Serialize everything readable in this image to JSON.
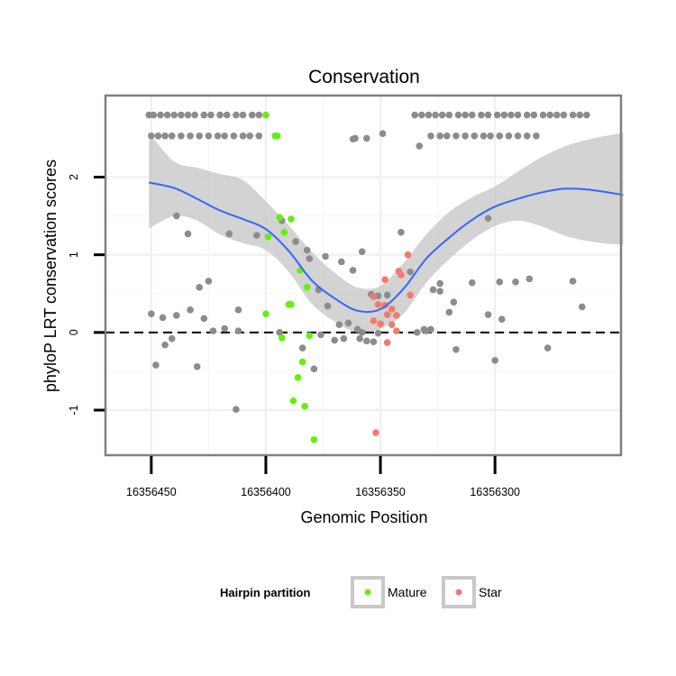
{
  "chart_data": {
    "type": "scatter",
    "title": "Conservation",
    "xlabel": "Genomic Position",
    "ylabel": "phyloP LRT conservation scores",
    "x_axis_reversed": true,
    "xlim": [
      16356470,
      16356245
    ],
    "ylim": [
      -1.58,
      3.05
    ],
    "x_ticks": [
      16356450,
      16356400,
      16356350,
      16356300
    ],
    "x_tick_labels": [
      "16356450",
      "16356400",
      "16356350",
      "16356300"
    ],
    "y_ticks": [
      -1,
      0,
      1,
      2
    ],
    "y_tick_labels": [
      "-1",
      "0",
      "1",
      "2"
    ],
    "reference_line": {
      "y": 0,
      "style": "dashed"
    },
    "grid": true,
    "legend": {
      "title": "Hairpin partition",
      "position": "bottom",
      "entries": [
        {
          "label": "Mature",
          "color": "#66ee11"
        },
        {
          "label": "Star",
          "color": "#f07b6e"
        }
      ]
    },
    "colors": {
      "other": "#8c8c8c",
      "mature": "#66ee11",
      "star": "#f07b6e",
      "smooth_line": "#3366ff",
      "ribbon": "#c8c8c8",
      "panel_border": "#7f7f7f"
    },
    "smooth": {
      "x": [
        16356451,
        16356440,
        16356430,
        16356420,
        16356410,
        16356400,
        16356390,
        16356380,
        16356370,
        16356360,
        16356350,
        16356340,
        16356330,
        16356320,
        16356310,
        16356300,
        16356290,
        16356280,
        16356270,
        16356260,
        16356250,
        16356244
      ],
      "y": [
        1.93,
        1.86,
        1.72,
        1.57,
        1.46,
        1.33,
        1.05,
        0.67,
        0.44,
        0.28,
        0.3,
        0.56,
        0.95,
        1.22,
        1.45,
        1.62,
        1.72,
        1.8,
        1.85,
        1.84,
        1.8,
        1.77
      ],
      "lower": [
        1.34,
        1.5,
        1.44,
        1.26,
        1.15,
        1.06,
        0.78,
        0.37,
        0.14,
        0.0,
        0.05,
        0.24,
        0.64,
        0.94,
        1.19,
        1.37,
        1.44,
        1.37,
        1.25,
        1.18,
        1.14,
        1.13
      ],
      "upper": [
        2.57,
        2.2,
        2.12,
        2.04,
        1.96,
        1.69,
        1.38,
        1.04,
        0.77,
        0.58,
        0.6,
        0.89,
        1.26,
        1.55,
        1.74,
        1.88,
        2.07,
        2.25,
        2.39,
        2.48,
        2.54,
        2.57
      ]
    },
    "series": [
      {
        "name": "other",
        "x": [
          16356451,
          16356449,
          16356446,
          16356443,
          16356440,
          16356437,
          16356434,
          16356431,
          16356427,
          16356424,
          16356420,
          16356417,
          16356413,
          16356410,
          16356406,
          16356403,
          16356450,
          16356447,
          16356444,
          16356441,
          16356437,
          16356433,
          16356429,
          16356425,
          16356421,
          16356418,
          16356414,
          16356410,
          16356407,
          16356403,
          16356361,
          16356362,
          16356349,
          16356356,
          16356335,
          16356332,
          16356329,
          16356326,
          16356323,
          16356320,
          16356316,
          16356313,
          16356310,
          16356306,
          16356303,
          16356299,
          16356296,
          16356293,
          16356290,
          16356286,
          16356283,
          16356279,
          16356276,
          16356273,
          16356270,
          16356266,
          16356263,
          16356260,
          16356333,
          16356328,
          16356324,
          16356321,
          16356317,
          16356313,
          16356309,
          16356305,
          16356302,
          16356298,
          16356294,
          16356290,
          16356286,
          16356282,
          16356439,
          16356434,
          16356429,
          16356425,
          16356416,
          16356412,
          16356404,
          16356393,
          16356387,
          16356382,
          16356374,
          16356367,
          16356362,
          16356358,
          16356354,
          16356351,
          16356341,
          16356337,
          16356327,
          16356324,
          16356318,
          16356310,
          16356303,
          16356297,
          16356291,
          16356285,
          16356450,
          16356445,
          16356439,
          16356433,
          16356427,
          16356423,
          16356418,
          16356412,
          16356394,
          16356381,
          16356377,
          16356373,
          16356368,
          16356364,
          16356360,
          16356358,
          16356356,
          16356351,
          16356347,
          16356330,
          16356328,
          16356266,
          16356262,
          16356324,
          16356320,
          16356303,
          16356298,
          16356448,
          16356444,
          16356441,
          16356430,
          16356413,
          16356384,
          16356379,
          16356376,
          16356370,
          16356366,
          16356359,
          16356353,
          16356334,
          16356331,
          16356317,
          16356300,
          16356277
        ],
        "y": [
          2.8,
          2.8,
          2.8,
          2.8,
          2.8,
          2.8,
          2.8,
          2.8,
          2.8,
          2.8,
          2.8,
          2.8,
          2.8,
          2.8,
          2.8,
          2.8,
          2.53,
          2.53,
          2.53,
          2.53,
          2.53,
          2.53,
          2.53,
          2.53,
          2.53,
          2.53,
          2.53,
          2.53,
          2.53,
          2.53,
          2.5,
          2.49,
          2.56,
          2.5,
          2.8,
          2.8,
          2.8,
          2.8,
          2.8,
          2.8,
          2.8,
          2.8,
          2.8,
          2.8,
          2.8,
          2.8,
          2.8,
          2.8,
          2.8,
          2.8,
          2.8,
          2.8,
          2.8,
          2.8,
          2.8,
          2.8,
          2.8,
          2.8,
          2.4,
          2.53,
          2.53,
          2.53,
          2.53,
          2.53,
          2.53,
          2.53,
          2.53,
          2.53,
          2.53,
          2.53,
          2.53,
          2.53,
          1.5,
          1.27,
          0.58,
          0.66,
          1.27,
          0.29,
          1.25,
          1.44,
          1.17,
          1.06,
          0.98,
          0.91,
          0.8,
          1.04,
          0.49,
          0.47,
          1.29,
          0.78,
          0.55,
          0.63,
          0.39,
          0.64,
          1.47,
          0.17,
          0.65,
          0.69,
          0.24,
          0.19,
          0.22,
          0.29,
          0.18,
          0.02,
          0.05,
          0.02,
          0.0,
          0.95,
          0.55,
          0.34,
          0.1,
          0.12,
          0.04,
          0.0,
          -0.11,
          -0.01,
          0.48,
          0.02,
          0.04,
          0.66,
          0.33,
          0.53,
          0.26,
          0.23,
          0.65,
          -0.42,
          -0.16,
          -0.08,
          -0.44,
          -0.99,
          -0.2,
          -0.47,
          -0.03,
          -0.1,
          -0.08,
          -0.08,
          -0.12,
          0.0,
          0.04,
          -0.22,
          -0.36,
          -0.2
        ]
      },
      {
        "name": "Mature",
        "x": [
          16356400,
          16356396,
          16356395,
          16356399,
          16356400,
          16356389,
          16356394,
          16356392,
          16356385,
          16356382,
          16356390,
          16356389,
          16356393,
          16356381,
          16356384,
          16356386,
          16356388,
          16356383,
          16356379
        ],
        "y": [
          2.8,
          2.53,
          2.53,
          1.23,
          0.24,
          1.46,
          1.48,
          1.29,
          0.8,
          0.58,
          0.36,
          0.36,
          -0.07,
          -0.04,
          -0.38,
          -0.58,
          -0.88,
          -0.95,
          -1.38
        ]
      },
      {
        "name": "Star",
        "x": [
          16356338,
          16356348,
          16356353,
          16356348,
          16356345,
          16356343,
          16356351,
          16356350,
          16356347,
          16356343,
          16356341,
          16356342,
          16356337,
          16356353,
          16356347,
          16356345,
          16356352
        ],
        "y": [
          1.0,
          0.68,
          0.46,
          0.35,
          0.3,
          0.22,
          0.36,
          0.11,
          0.23,
          0.02,
          0.74,
          0.79,
          0.48,
          0.15,
          -0.13,
          0.1,
          -1.29
        ]
      }
    ]
  }
}
